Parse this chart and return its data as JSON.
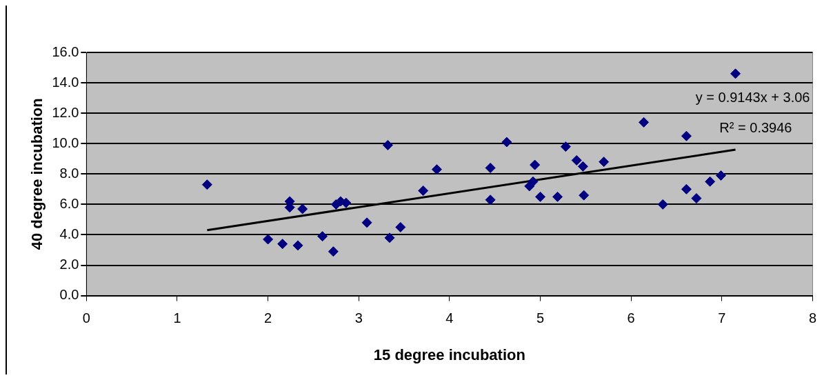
{
  "chart_data": {
    "type": "scatter",
    "xlabel": "15 degree incubation",
    "ylabel": "40 degree incubation",
    "xlim": [
      0,
      8
    ],
    "xticks": [
      0,
      1,
      2,
      3,
      4,
      5,
      6,
      7,
      8
    ],
    "ylim": [
      0,
      16
    ],
    "yticks": [
      {
        "value": 0,
        "label": "0.0"
      },
      {
        "value": 2,
        "label": "2.0"
      },
      {
        "value": 4,
        "label": "4.0"
      },
      {
        "value": 6,
        "label": "6.0"
      },
      {
        "value": 8,
        "label": "8.0"
      },
      {
        "value": 10,
        "label": "10.0"
      },
      {
        "value": 12,
        "label": "12.0"
      },
      {
        "value": 14,
        "label": "14.0"
      },
      {
        "value": 16,
        "label": "16.0"
      }
    ],
    "grid": "y",
    "legend": false,
    "annotations": [
      "y = 0.9143x + 3.06",
      "R² = 0.3946"
    ],
    "series": [
      {
        "type": "scatter",
        "color": "#000080",
        "marker": "diamond",
        "x": [
          1.33,
          2.0,
          2.16,
          2.24,
          2.24,
          2.33,
          2.38,
          2.6,
          2.72,
          2.75,
          2.8,
          2.86,
          3.09,
          3.32,
          3.34,
          3.46,
          3.71,
          3.86,
          4.45,
          4.45,
          4.63,
          4.88,
          4.92,
          4.94,
          5.0,
          5.19,
          5.28,
          5.4,
          5.47,
          5.48,
          5.7,
          6.14,
          6.35,
          6.61,
          6.61,
          6.72,
          6.87,
          6.99,
          7.15
        ],
        "values": [
          7.3,
          3.7,
          3.4,
          6.2,
          5.8,
          3.3,
          5.7,
          3.9,
          2.9,
          6.0,
          6.2,
          6.1,
          4.8,
          9.9,
          3.8,
          4.5,
          6.9,
          8.3,
          8.4,
          6.3,
          10.1,
          7.2,
          7.5,
          8.6,
          6.5,
          6.5,
          9.8,
          8.9,
          8.5,
          6.6,
          8.8,
          11.4,
          6.0,
          10.5,
          7.0,
          6.4,
          7.5,
          7.9,
          14.6
        ]
      },
      {
        "type": "line",
        "color": "#000000",
        "marker": "none",
        "line_style": "solid",
        "x": [
          1.33,
          7.15
        ],
        "values": [
          4.3,
          9.6
        ]
      }
    ]
  }
}
